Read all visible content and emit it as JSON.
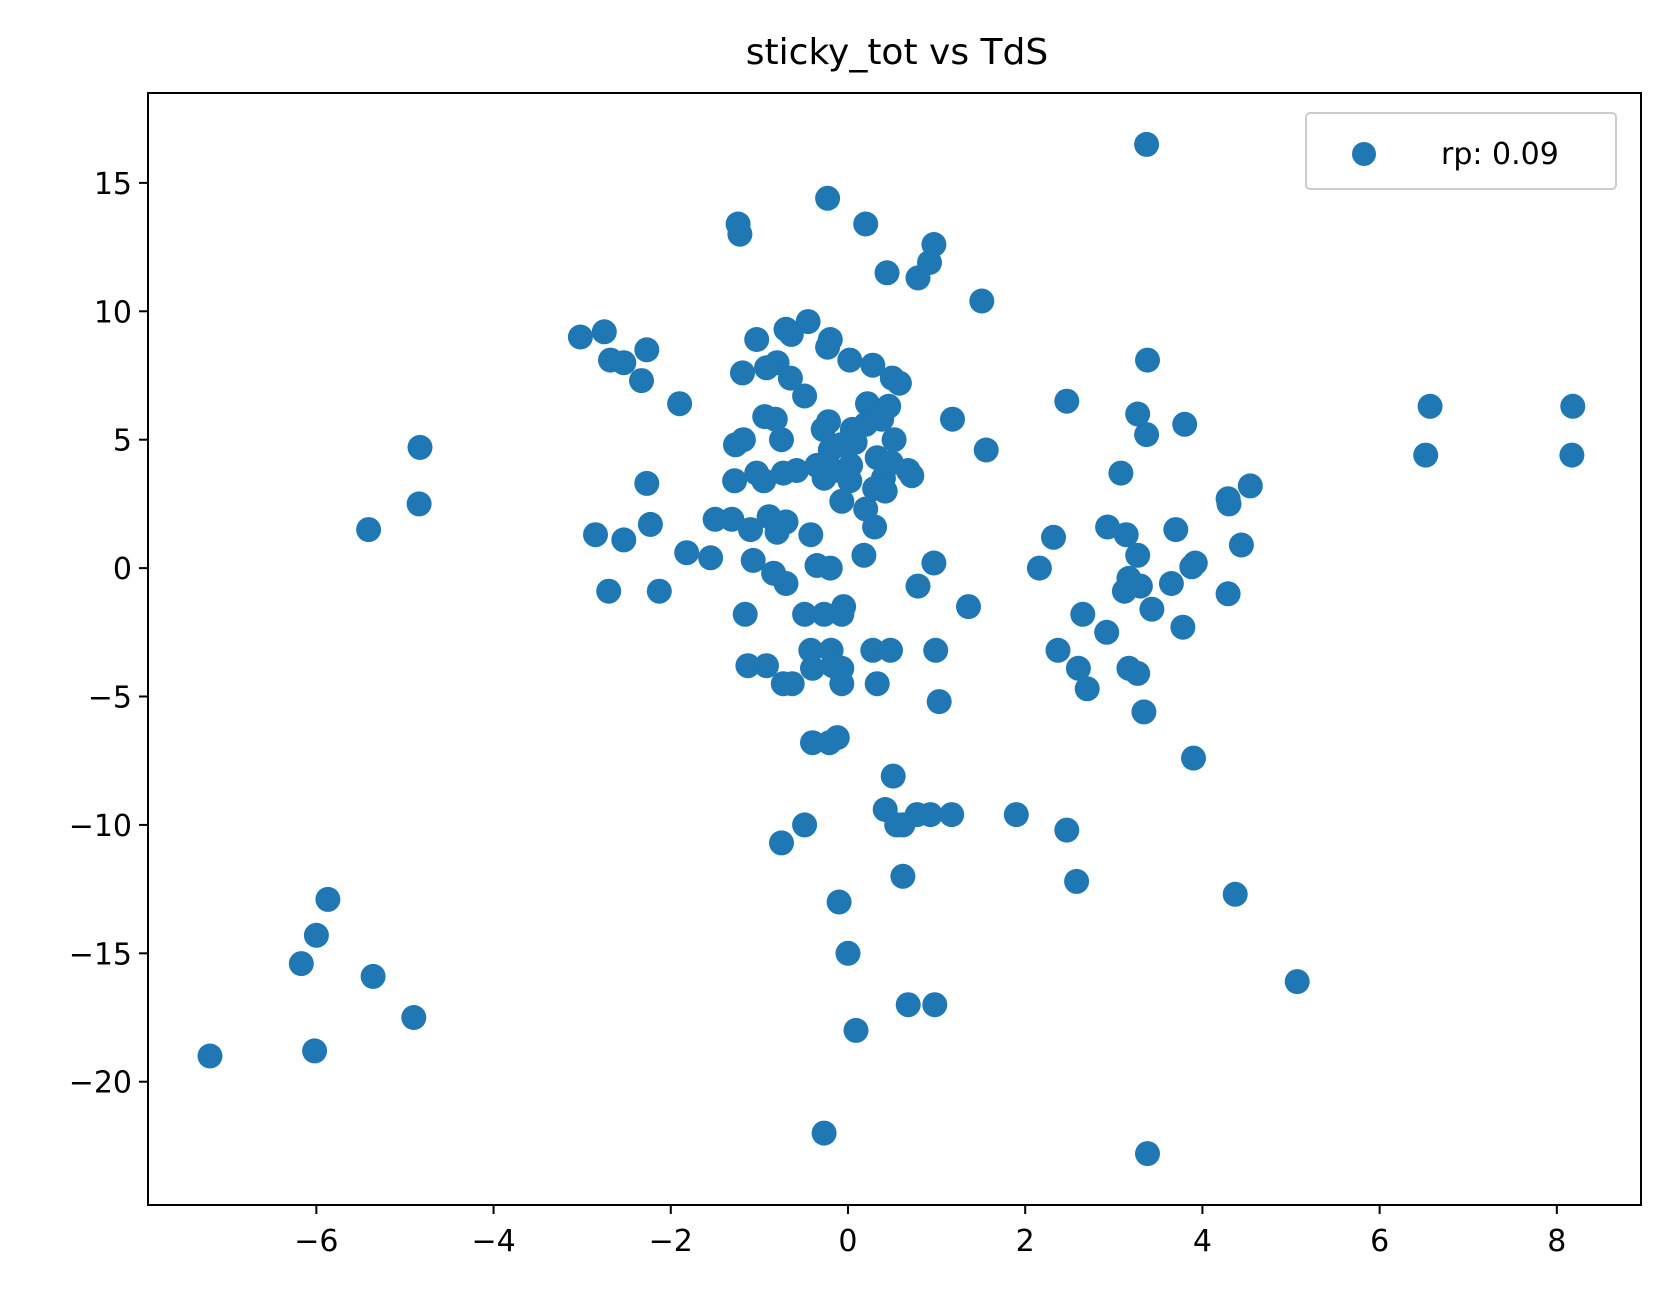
{
  "chart_data": {
    "type": "scatter",
    "title": "sticky_tot vs TdS",
    "xlabel": "",
    "ylabel": "",
    "xlim": [
      -7.9,
      8.95
    ],
    "ylim": [
      -24.8,
      18.5
    ],
    "xticks": [
      -6,
      -4,
      -2,
      0,
      2,
      4,
      6,
      8
    ],
    "yticks": [
      15,
      10,
      5,
      0,
      -5,
      -10,
      -15,
      -20
    ],
    "xtick_labels": [
      "−6",
      "−4",
      "−2",
      "0",
      "2",
      "4",
      "6",
      "8"
    ],
    "ytick_labels": [
      "15",
      "10",
      "5",
      "0",
      "−5",
      "−10",
      "−15",
      "−20"
    ],
    "grid": false,
    "legend_position": "upper right",
    "series_color": "#1f77b4",
    "series": [
      {
        "name": "rp: 0.09",
        "points": [
          [
            3.37,
            16.5
          ],
          [
            -0.23,
            14.4
          ],
          [
            -1.24,
            13.4
          ],
          [
            0.2,
            13.4
          ],
          [
            -1.22,
            13.0
          ],
          [
            0.97,
            12.6
          ],
          [
            0.92,
            11.9
          ],
          [
            0.44,
            11.5
          ],
          [
            0.79,
            11.3
          ],
          [
            1.51,
            10.4
          ],
          [
            -3.02,
            9.0
          ],
          [
            -2.75,
            9.2
          ],
          [
            -1.03,
            8.9
          ],
          [
            -0.7,
            9.3
          ],
          [
            -0.45,
            9.6
          ],
          [
            -0.64,
            9.1
          ],
          [
            -0.2,
            8.9
          ],
          [
            -2.68,
            8.1
          ],
          [
            -2.53,
            8.0
          ],
          [
            -2.27,
            8.5
          ],
          [
            -2.33,
            7.3
          ],
          [
            -0.23,
            8.6
          ],
          [
            0.02,
            8.1
          ],
          [
            0.28,
            7.9
          ],
          [
            -0.8,
            8.0
          ],
          [
            -0.92,
            7.8
          ],
          [
            -1.19,
            7.6
          ],
          [
            -0.65,
            7.4
          ],
          [
            0.5,
            7.4
          ],
          [
            0.58,
            7.2
          ],
          [
            -0.49,
            6.7
          ],
          [
            3.38,
            8.1
          ],
          [
            -1.9,
            6.4
          ],
          [
            0.22,
            6.4
          ],
          [
            2.47,
            6.5
          ],
          [
            0.46,
            6.3
          ],
          [
            -0.94,
            5.9
          ],
          [
            -0.82,
            5.8
          ],
          [
            -0.22,
            5.7
          ],
          [
            1.18,
            5.8
          ],
          [
            3.27,
            6.0
          ],
          [
            3.8,
            5.6
          ],
          [
            0.05,
            5.4
          ],
          [
            -0.28,
            5.4
          ],
          [
            0.2,
            5.6
          ],
          [
            0.38,
            5.8
          ],
          [
            -0.75,
            5.0
          ],
          [
            -1.27,
            4.8
          ],
          [
            -1.18,
            5.0
          ],
          [
            0.52,
            5.0
          ],
          [
            1.56,
            4.6
          ],
          [
            3.37,
            5.2
          ],
          [
            -0.2,
            4.6
          ],
          [
            -0.08,
            4.8
          ],
          [
            0.08,
            4.9
          ],
          [
            0.33,
            4.3
          ],
          [
            0.49,
            4.1
          ],
          [
            -0.35,
            4.0
          ],
          [
            -0.16,
            3.8
          ],
          [
            0.03,
            4.0
          ],
          [
            0.68,
            3.8
          ],
          [
            0.72,
            3.6
          ],
          [
            -1.03,
            3.7
          ],
          [
            -0.73,
            3.7
          ],
          [
            -0.58,
            3.8
          ],
          [
            -1.28,
            3.4
          ],
          [
            -0.95,
            3.4
          ],
          [
            -0.27,
            3.5
          ],
          [
            0.02,
            3.4
          ],
          [
            0.4,
            3.5
          ],
          [
            3.08,
            3.7
          ],
          [
            -2.27,
            3.3
          ],
          [
            0.3,
            3.1
          ],
          [
            0.42,
            3.0
          ],
          [
            4.29,
            2.7
          ],
          [
            4.3,
            2.5
          ],
          [
            4.54,
            3.2
          ],
          [
            -0.07,
            2.6
          ],
          [
            0.2,
            2.3
          ],
          [
            -1.5,
            1.9
          ],
          [
            -1.31,
            1.9
          ],
          [
            -0.89,
            2.0
          ],
          [
            -0.7,
            1.8
          ],
          [
            -1.1,
            1.5
          ],
          [
            -0.8,
            1.4
          ],
          [
            -0.42,
            1.3
          ],
          [
            0.3,
            1.6
          ],
          [
            -2.23,
            1.7
          ],
          [
            -2.85,
            1.3
          ],
          [
            -2.53,
            1.1
          ],
          [
            2.32,
            1.2
          ],
          [
            2.93,
            1.6
          ],
          [
            3.14,
            1.3
          ],
          [
            3.7,
            1.5
          ],
          [
            4.44,
            0.9
          ],
          [
            -1.82,
            0.6
          ],
          [
            -1.55,
            0.4
          ],
          [
            -1.07,
            0.3
          ],
          [
            0.18,
            0.5
          ],
          [
            0.97,
            0.2
          ],
          [
            2.16,
            0.0
          ],
          [
            3.27,
            0.5
          ],
          [
            3.92,
            0.2
          ],
          [
            3.88,
            0.05
          ],
          [
            -0.35,
            0.1
          ],
          [
            -0.2,
            0.0
          ],
          [
            -0.84,
            -0.2
          ],
          [
            -0.7,
            -0.6
          ],
          [
            -2.7,
            -0.9
          ],
          [
            -2.13,
            -0.9
          ],
          [
            0.79,
            -0.7
          ],
          [
            3.17,
            -0.4
          ],
          [
            3.3,
            -0.7
          ],
          [
            3.12,
            -0.9
          ],
          [
            3.65,
            -0.6
          ],
          [
            4.29,
            -1.0
          ],
          [
            -1.16,
            -1.8
          ],
          [
            -0.49,
            -1.8
          ],
          [
            -0.27,
            -1.8
          ],
          [
            -0.07,
            -1.8
          ],
          [
            -0.05,
            -1.5
          ],
          [
            1.36,
            -1.5
          ],
          [
            2.65,
            -1.8
          ],
          [
            3.43,
            -1.6
          ],
          [
            2.92,
            -2.5
          ],
          [
            3.78,
            -2.3
          ],
          [
            -0.42,
            -3.2
          ],
          [
            -0.19,
            -3.2
          ],
          [
            0.28,
            -3.2
          ],
          [
            0.48,
            -3.2
          ],
          [
            0.99,
            -3.2
          ],
          [
            2.37,
            -3.2
          ],
          [
            -1.13,
            -3.8
          ],
          [
            -0.92,
            -3.8
          ],
          [
            -0.4,
            -3.9
          ],
          [
            -0.17,
            -3.8
          ],
          [
            -0.07,
            -3.9
          ],
          [
            2.6,
            -3.9
          ],
          [
            3.17,
            -3.9
          ],
          [
            3.27,
            -4.1
          ],
          [
            -0.73,
            -4.5
          ],
          [
            -0.63,
            -4.5
          ],
          [
            -0.07,
            -4.5
          ],
          [
            0.33,
            -4.5
          ],
          [
            2.7,
            -4.7
          ],
          [
            1.03,
            -5.2
          ],
          [
            3.34,
            -5.6
          ],
          [
            -0.4,
            -6.8
          ],
          [
            -0.21,
            -6.8
          ],
          [
            -0.12,
            -6.6
          ],
          [
            3.9,
            -7.4
          ],
          [
            0.51,
            -8.1
          ],
          [
            0.42,
            -9.4
          ],
          [
            0.78,
            -9.6
          ],
          [
            0.93,
            -9.6
          ],
          [
            1.17,
            -9.6
          ],
          [
            1.9,
            -9.6
          ],
          [
            0.55,
            -10.0
          ],
          [
            0.62,
            -10.0
          ],
          [
            -0.49,
            -10.0
          ],
          [
            2.47,
            -10.2
          ],
          [
            -0.75,
            -10.7
          ],
          [
            0.62,
            -12.0
          ],
          [
            2.58,
            -12.2
          ],
          [
            4.37,
            -12.7
          ],
          [
            -0.1,
            -13.0
          ],
          [
            0.0,
            -15.0
          ],
          [
            5.07,
            -16.1
          ],
          [
            0.68,
            -17.0
          ],
          [
            0.98,
            -17.0
          ],
          [
            0.09,
            -18.0
          ],
          [
            -0.27,
            -22.0
          ],
          [
            3.38,
            -22.8
          ],
          [
            6.52,
            4.4
          ],
          [
            6.57,
            6.3
          ],
          [
            8.17,
            4.4
          ],
          [
            8.18,
            6.3
          ],
          [
            -4.83,
            4.7
          ],
          [
            -4.84,
            2.5
          ],
          [
            -5.41,
            1.5
          ],
          [
            -5.87,
            -12.9
          ],
          [
            -6.0,
            -14.3
          ],
          [
            -6.17,
            -15.4
          ],
          [
            -5.36,
            -15.9
          ],
          [
            -4.9,
            -17.5
          ],
          [
            -6.02,
            -18.8
          ],
          [
            -7.2,
            -19.0
          ]
        ]
      }
    ]
  }
}
